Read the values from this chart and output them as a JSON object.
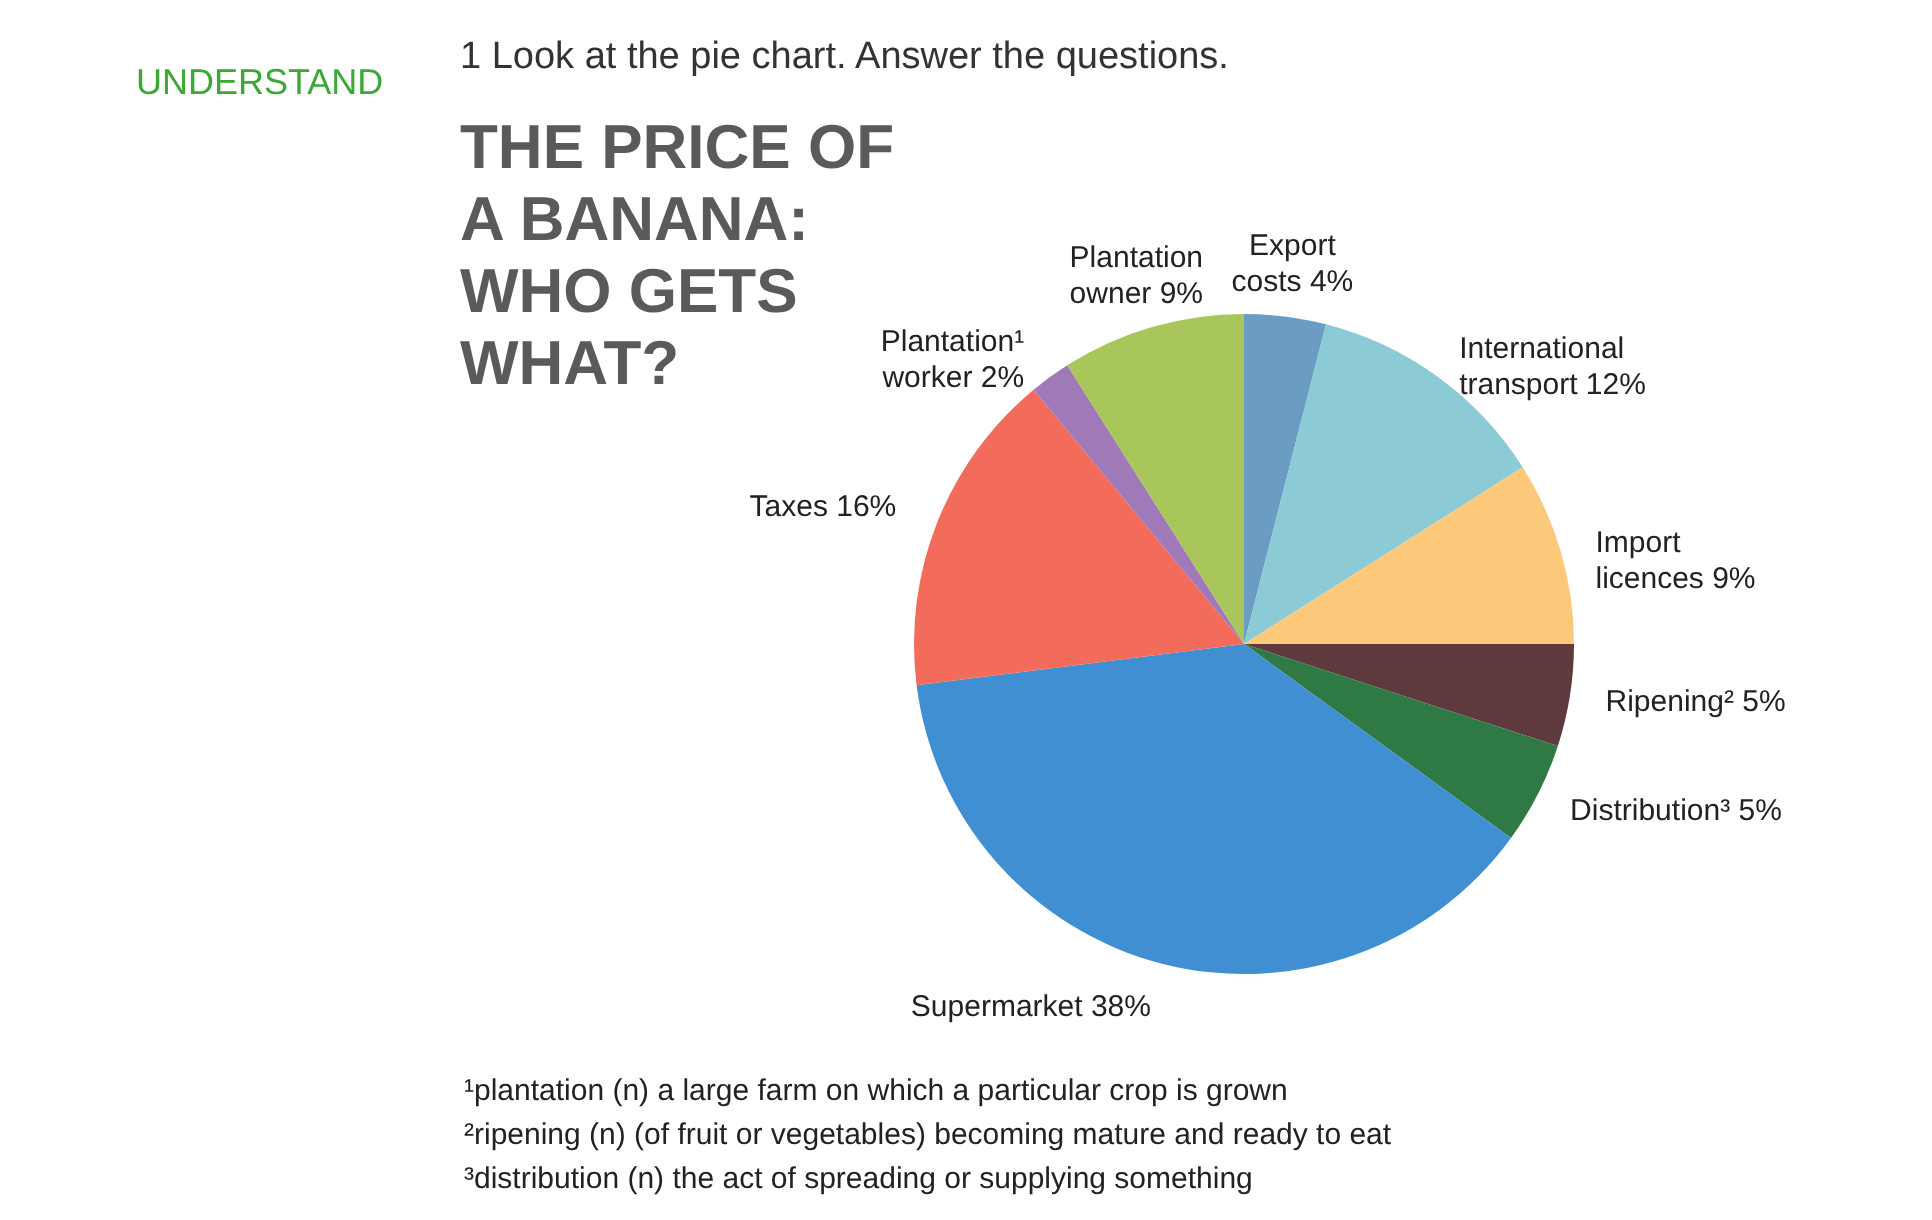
{
  "chart_data": {
    "type": "pie",
    "title": "THE PRICE OF A BANANA: WHO GETS WHAT?",
    "categories": [
      "Export costs",
      "International transport",
      "Import licences",
      "Ripening²",
      "Distribution³",
      "Supermarket",
      "Taxes",
      "Plantation¹ worker",
      "Plantation owner"
    ],
    "values": [
      4,
      12,
      9,
      5,
      5,
      38,
      16,
      2,
      9
    ],
    "value_labels": [
      "4%",
      "12%",
      "9%",
      "5%",
      "5%",
      "38%",
      "16%",
      "2%",
      "9%"
    ],
    "colors": [
      "#6a9cc4",
      "#8ccad6",
      "#fcc97a",
      "#5e3a3e",
      "#2f7a44",
      "#3f8fd2",
      "#f26b5b",
      "#a07ab8",
      "#a9c65a"
    ],
    "annotations": [
      "UNDERSTAND",
      "1 Look at the pie chart. Answer the questions.",
      "¹plantation (n) a large farm on which a particular crop is grown",
      "²ripening (n) (of fruit or vegetables) becoming mature and ready to eat",
      "³distribution (n) the act of spreading or supplying something"
    ]
  }
}
